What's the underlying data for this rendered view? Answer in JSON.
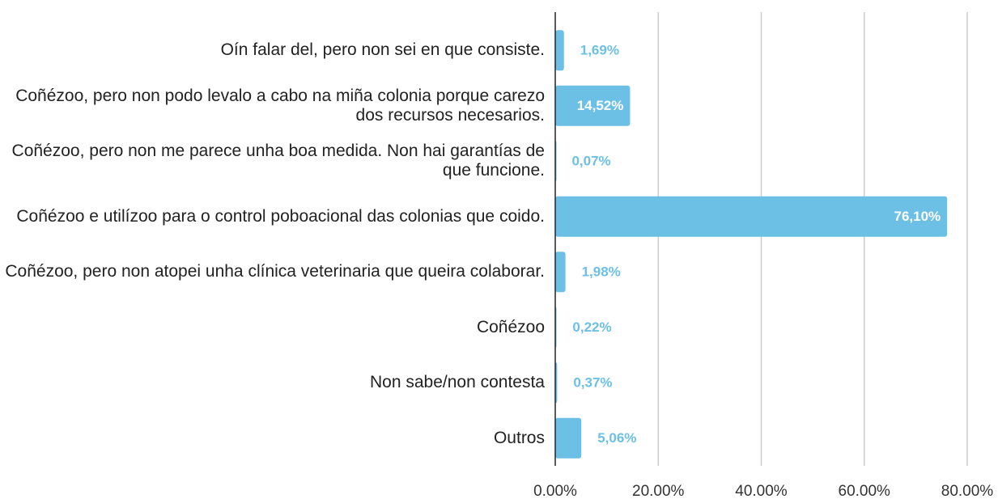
{
  "chart_data": {
    "type": "hbar",
    "categories": [
      "Oín falar del, pero non sei en que consiste.",
      "Coñézoo, pero non podo levalo a cabo na miña colonia porque carezo dos recursos necesarios.",
      "Coñézoo, pero non me parece unha boa medida. Non hai garantías de que funcione.",
      "Coñézoo e utilízoo para o control poboacional das colonias que coido.",
      "Coñézoo, pero non atopei unha clínica veterinaria que queira colaborar.",
      "Coñézoo",
      "Non sabe/non contesta",
      "Outros"
    ],
    "values": [
      1.69,
      14.52,
      0.07,
      76.1,
      1.98,
      0.22,
      0.37,
      5.06
    ],
    "value_labels": [
      "1,69%",
      "14,52%",
      "0,07%",
      "76,10%",
      "1,98%",
      "0,22%",
      "0,37%",
      "5,06%"
    ],
    "color": "#6cc0e5",
    "xlim": [
      0,
      80
    ],
    "xticks": [
      {
        "value": 0,
        "label": "0.00%"
      },
      {
        "value": 20,
        "label": "20.00%"
      },
      {
        "value": 40,
        "label": "40.00%"
      },
      {
        "value": 60,
        "label": "60.00%"
      },
      {
        "value": 80,
        "label": "80.00%"
      }
    ],
    "grid": true
  }
}
